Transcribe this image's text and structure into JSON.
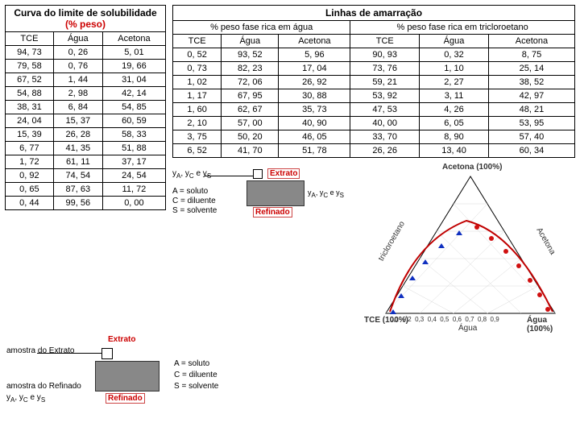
{
  "solubilidade": {
    "title_prefix": "Curva do limite de solubilidade ",
    "title_suffix": "(% peso)",
    "columns": [
      "TCE",
      "Água",
      "Acetona"
    ],
    "rows": [
      [
        "94, 73",
        "0, 26",
        "5, 01"
      ],
      [
        "79, 58",
        "0, 76",
        "19, 66"
      ],
      [
        "67, 52",
        "1, 44",
        "31, 04"
      ],
      [
        "54, 88",
        "2, 98",
        "42, 14"
      ],
      [
        "38, 31",
        "6, 84",
        "54, 85"
      ],
      [
        "24, 04",
        "15, 37",
        "60, 59"
      ],
      [
        "15, 39",
        "26, 28",
        "58, 33"
      ],
      [
        "6, 77",
        "41, 35",
        "51, 88"
      ],
      [
        "1, 72",
        "61, 11",
        "37, 17"
      ],
      [
        "0, 92",
        "74, 54",
        "24, 54"
      ],
      [
        "0, 65",
        "87, 63",
        "11, 72"
      ],
      [
        "0, 44",
        "99, 56",
        "0, 00"
      ]
    ]
  },
  "amarracao": {
    "title": "Linhas de amarração",
    "sub_left": "% peso fase rica em água",
    "sub_right": "% peso fase rica em tricloroetano",
    "columns": [
      "TCE",
      "Água",
      "Acetona",
      "TCE",
      "Água",
      "Acetona"
    ],
    "rows": [
      [
        "0, 52",
        "93, 52",
        "5, 96",
        "90, 93",
        "0, 32",
        "8, 75"
      ],
      [
        "0, 73",
        "82, 23",
        "17, 04",
        "73, 76",
        "1, 10",
        "25, 14"
      ],
      [
        "1, 02",
        "72, 06",
        "26, 92",
        "59, 21",
        "2, 27",
        "38, 52"
      ],
      [
        "1, 17",
        "67, 95",
        "30, 88",
        "53, 92",
        "3, 11",
        "42, 97"
      ],
      [
        "1, 60",
        "62, 67",
        "35, 73",
        "47, 53",
        "4, 26",
        "48, 21"
      ],
      [
        "2, 10",
        "57, 00",
        "40, 90",
        "40, 00",
        "6, 05",
        "53, 95"
      ],
      [
        "3, 75",
        "50, 20",
        "46, 05",
        "33, 70",
        "8, 90",
        "57, 40"
      ],
      [
        "6, 52",
        "41, 70",
        "51, 78",
        "26, 26",
        "13, 40",
        "60, 34"
      ]
    ]
  },
  "schematic": {
    "extrato": "Extrato",
    "refinado": "Refinado",
    "legend_a": "A = soluto",
    "legend_c": "C = diluente",
    "legend_s": "S = solvente",
    "amostra_ext": "amostra do Extrato",
    "amostra_ref": "amostra do Refinado",
    "yvars": "y"
  },
  "ternary": {
    "top": "Acetona (100%)",
    "left": "tricloroetano",
    "right": "Acetona",
    "bl": "TCE (100%)",
    "br": "Água (100%)",
    "bottom": "Água",
    "ticks": [
      "0,1",
      "0,2",
      "0,3",
      "0,4",
      "0,5",
      "0,6",
      "0,7",
      "0,8",
      "0,9"
    ],
    "curve_color": "#c00000",
    "marker_blue": "#1030c0",
    "marker_red": "#d01010",
    "grid_color": "#d8d8d8",
    "bg": "#ffffff"
  }
}
